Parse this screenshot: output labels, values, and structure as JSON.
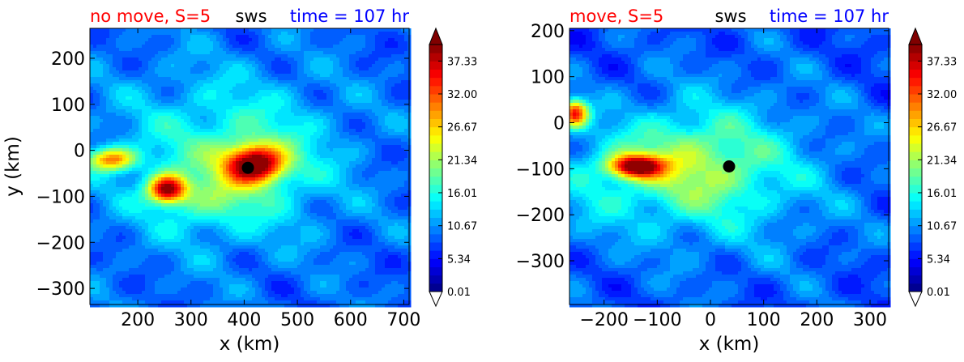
{
  "chart_data": [
    {
      "type": "heatmap",
      "title_parts": {
        "left": "no move, S=5",
        "center": "sws",
        "right": "time = 107 hr"
      },
      "title_colors": {
        "left": "#ff0000",
        "center": "#000000",
        "right": "#0000ff"
      },
      "xlabel": "x (km)",
      "ylabel": "y (km)",
      "xlim": [
        110,
        710
      ],
      "ylim": [
        -335,
        265
      ],
      "xticks": [
        200,
        300,
        400,
        500,
        600,
        700
      ],
      "yticks": [
        200,
        100,
        0,
        -100,
        -200,
        -300
      ],
      "xtick_labels": [
        "200",
        "300",
        "400",
        "500",
        "600",
        "700"
      ],
      "ytick_labels": [
        "200",
        "100",
        "0",
        "−100",
        "−200",
        "−300"
      ],
      "colorbar": {
        "min": 0.01,
        "max": 40.0,
        "ticks": [
          "37.33",
          "32.00",
          "26.67",
          "21.34",
          "16.01",
          "10.67",
          "5.34",
          "0.01"
        ],
        "tick_values": [
          37.33,
          32.0,
          26.67,
          21.34,
          16.01,
          10.67,
          5.34,
          0.01
        ],
        "extend": "both",
        "colormap": "jet"
      },
      "center_marker": {
        "x": 407,
        "y": -38
      },
      "field_features": [
        {
          "x": 420,
          "y": -30,
          "sx": 55,
          "sy": 40,
          "value": 36
        },
        {
          "x": 255,
          "y": -85,
          "sx": 35,
          "sy": 30,
          "value": 33
        },
        {
          "x": 150,
          "y": -20,
          "sx": 45,
          "sy": 25,
          "value": 25
        },
        {
          "x": 330,
          "y": -110,
          "sx": 90,
          "sy": 60,
          "value": 8
        },
        {
          "x": 420,
          "y": -20,
          "sx": 170,
          "sy": 150,
          "value": 10
        },
        {
          "x": 300,
          "y": -10,
          "sx": 200,
          "sy": 200,
          "value": 7
        }
      ],
      "background_value": 9,
      "grid": false,
      "legend": "none"
    },
    {
      "type": "heatmap",
      "title_parts": {
        "left": "move, S=5",
        "center": "sws",
        "right": "time = 107 hr"
      },
      "title_colors": {
        "left": "#ff0000",
        "center": "#000000",
        "right": "#0000ff"
      },
      "xlabel": "x (km)",
      "ylabel": "",
      "xlim": [
        -265,
        335
      ],
      "ylim": [
        -395,
        205
      ],
      "xticks": [
        -200,
        -100,
        0,
        100,
        200,
        300
      ],
      "yticks": [
        200,
        100,
        0,
        -100,
        -200,
        -300
      ],
      "xtick_labels": [
        "−200",
        "−100",
        "0",
        "100",
        "200",
        "300"
      ],
      "ytick_labels": [
        "200",
        "100",
        "0",
        "−100",
        "−200",
        "−300"
      ],
      "colorbar": {
        "min": 0.01,
        "max": 40.0,
        "ticks": [
          "37.33",
          "32.00",
          "26.67",
          "21.34",
          "16.01",
          "10.67",
          "5.34",
          "0.01"
        ],
        "tick_values": [
          37.33,
          32.0,
          26.67,
          21.34,
          16.01,
          10.67,
          5.34,
          0.01
        ],
        "extend": "both",
        "colormap": "jet"
      },
      "center_marker": {
        "x": 35,
        "y": -95
      },
      "field_features": [
        {
          "x": -140,
          "y": -95,
          "sx": 50,
          "sy": 25,
          "value": 34
        },
        {
          "x": -255,
          "y": 20,
          "sx": 25,
          "sy": 30,
          "value": 31
        },
        {
          "x": -40,
          "y": -95,
          "sx": 150,
          "sy": 110,
          "value": 14
        },
        {
          "x": 30,
          "y": -110,
          "sx": 250,
          "sy": 200,
          "value": 8
        },
        {
          "x": -230,
          "y": -140,
          "sx": 80,
          "sy": 120,
          "value": 6
        }
      ],
      "background_value": 8,
      "grid": false,
      "legend": "none"
    }
  ]
}
